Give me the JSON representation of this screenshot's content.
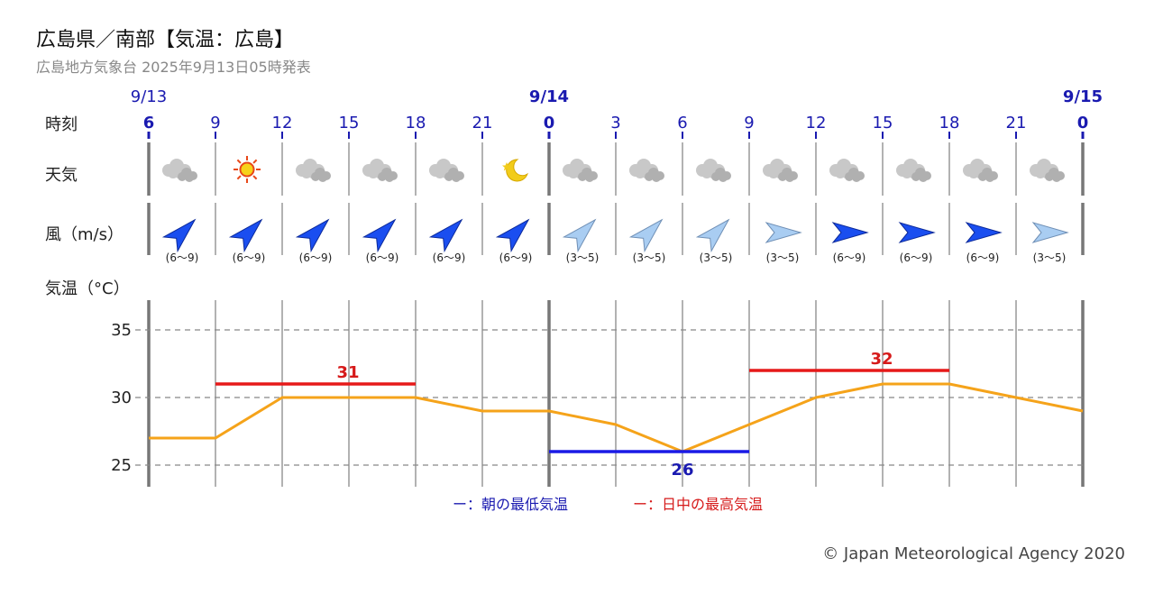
{
  "header": {
    "title": "広島県／南部【気温：広島】",
    "subtitle": "広島地方気象台 2025年9月13日05時発表"
  },
  "rows": {
    "time_label": "時刻",
    "weather_label": "天気",
    "wind_label": "風（m/s）",
    "temp_label": "気温（°C）"
  },
  "legend": {
    "min_label": "ー：朝の最低気温",
    "max_label": "ー：日中の最高気温"
  },
  "credit": "© Japan Meteorological Agency 2020",
  "colors": {
    "min_line": "#1a1ae6",
    "max_line": "#e61a1a",
    "temp_line": "#f5a31a",
    "date_text": "#1a1ab0",
    "grid": "#888888"
  },
  "chart_data": {
    "type": "line",
    "dates": [
      {
        "label": "9/13",
        "at_index": 0
      },
      {
        "label": "9/14",
        "at_index": 6
      },
      {
        "label": "9/15",
        "at_index": 14
      }
    ],
    "hours": [
      "6",
      "9",
      "12",
      "15",
      "18",
      "21",
      "0",
      "3",
      "6",
      "9",
      "12",
      "15",
      "18",
      "21",
      "0"
    ],
    "weather": [
      "cloud-icon",
      "sun-icon",
      "cloud-icon",
      "cloud-icon",
      "cloud-icon",
      "moon-icon",
      "cloud-icon",
      "cloud-icon",
      "cloud-icon",
      "cloud-icon",
      "cloud-icon",
      "cloud-icon",
      "cloud-icon",
      "cloud-icon"
    ],
    "wind": [
      {
        "dir": "SW",
        "speed": "(6〜9)"
      },
      {
        "dir": "SW",
        "speed": "(6〜9)"
      },
      {
        "dir": "SW",
        "speed": "(6〜9)"
      },
      {
        "dir": "SW",
        "speed": "(6〜9)"
      },
      {
        "dir": "SW",
        "speed": "(6〜9)"
      },
      {
        "dir": "SW",
        "speed": "(6〜9)"
      },
      {
        "dir": "SW",
        "speed": "(3〜5)"
      },
      {
        "dir": "SW",
        "speed": "(3〜5)"
      },
      {
        "dir": "SW",
        "speed": "(3〜5)"
      },
      {
        "dir": "W",
        "speed": "(3〜5)"
      },
      {
        "dir": "W",
        "speed": "(6〜9)"
      },
      {
        "dir": "W",
        "speed": "(6〜9)"
      },
      {
        "dir": "W",
        "speed": "(6〜9)"
      },
      {
        "dir": "W",
        "speed": "(3〜5)"
      }
    ],
    "temperature": [
      27,
      27,
      30,
      30,
      30,
      29,
      29,
      28,
      26,
      28,
      30,
      31,
      31,
      30,
      29
    ],
    "y_ticks": [
      "35",
      "30",
      "25"
    ],
    "ylim": [
      23.4,
      37.2
    ],
    "min_temp": {
      "value": "26",
      "from_index": 6,
      "to_index": 9
    },
    "max_temp": [
      {
        "value": "31",
        "from_index": 1,
        "to_index": 4
      },
      {
        "value": "32",
        "from_index": 9,
        "to_index": 12
      }
    ],
    "grid": "dashed-horizontal"
  }
}
